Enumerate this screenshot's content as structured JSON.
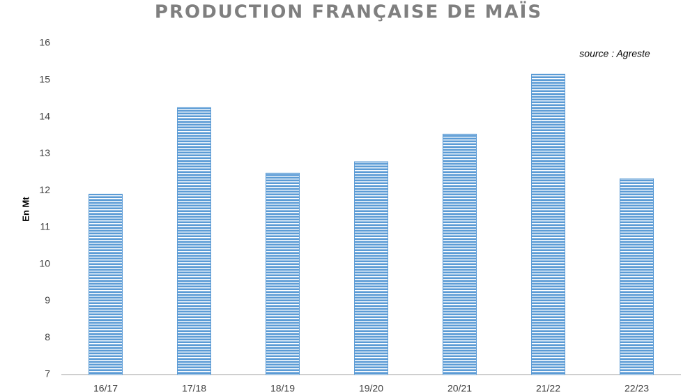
{
  "chart_data": {
    "type": "bar",
    "title": "PRODUCTION FRANÇAISE DE MAÏS",
    "annotation": "source : Agreste",
    "y_label": "En Mt",
    "categories": [
      "16/17",
      "17/18",
      "18/19",
      "19/20",
      "20/21",
      "21/22",
      "22/23"
    ],
    "values": [
      11.9,
      14.25,
      12.47,
      12.78,
      13.53,
      15.16,
      12.32
    ],
    "color": "#5b9bd5",
    "ylim": [
      7,
      16
    ],
    "yticks": [
      7,
      8,
      9,
      10,
      11,
      12,
      13,
      14,
      15,
      16
    ],
    "grid": false
  }
}
